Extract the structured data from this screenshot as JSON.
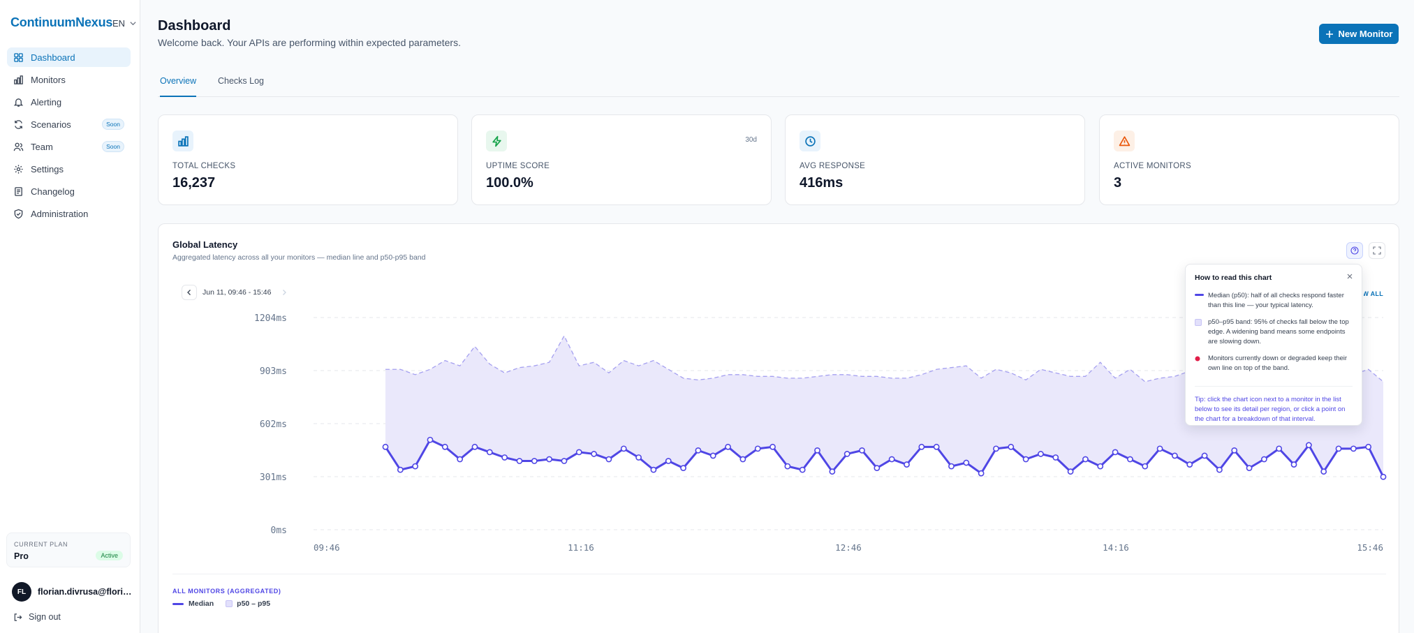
{
  "app": {
    "brand": "ContinuumNexus",
    "language": "EN"
  },
  "sidebar": {
    "items": [
      {
        "label": "Dashboard",
        "icon": "grid-icon",
        "active": true
      },
      {
        "label": "Monitors",
        "icon": "bar-chart-icon"
      },
      {
        "label": "Alerting",
        "icon": "bell-icon"
      },
      {
        "label": "Scenarios",
        "icon": "refresh-icon",
        "badge": "Soon"
      },
      {
        "label": "Team",
        "icon": "users-icon",
        "badge": "Soon"
      },
      {
        "label": "Settings",
        "icon": "gear-icon"
      },
      {
        "label": "Changelog",
        "icon": "document-icon"
      },
      {
        "label": "Administration",
        "icon": "shield-icon"
      }
    ],
    "plan": {
      "label": "CURRENT PLAN",
      "name": "Pro",
      "status": "Active"
    },
    "user": {
      "initials": "FL",
      "email": "florian.divrusa@florian.divrusa.com"
    },
    "signout": "Sign out"
  },
  "header": {
    "title": "Dashboard",
    "subtitle": "Welcome back. Your APIs are performing within expected parameters.",
    "new_monitor": "New Monitor"
  },
  "tabs": [
    {
      "label": "Overview",
      "active": true
    },
    {
      "label": "Checks Log"
    }
  ],
  "stats": [
    {
      "label": "TOTAL CHECKS",
      "value": "16,237",
      "icon": "bar-chart-icon",
      "color": "#0b73b8",
      "bg": "#e8f3fc"
    },
    {
      "label": "UPTIME SCORE",
      "value": "100.0%",
      "icon": "lightning-icon",
      "color": "#16a34a",
      "bg": "#e8f7ee",
      "tag": "30d"
    },
    {
      "label": "AVG RESPONSE",
      "value": "416ms",
      "icon": "clock-icon",
      "color": "#0b73b8",
      "bg": "#e8f3fc"
    },
    {
      "label": "ACTIVE MONITORS",
      "value": "3",
      "icon": "warning-icon",
      "color": "#ea580c",
      "bg": "#fdf0e6"
    }
  ],
  "chart": {
    "title": "Global Latency",
    "subtitle": "Aggregated latency across all your monitors — median line and p50-p95 band",
    "range": "Jun 11, 09:46 - 15:46",
    "show_all": "SHOW ALL",
    "legend_heading": "ALL MONITORS (AGGREGATED)",
    "legend_median": "Median",
    "legend_band": "p50 – p95",
    "colors": {
      "median": "#4f46e5",
      "band_fill": "#e9e7fb",
      "band_line": "#a5a0f0"
    }
  },
  "chart_data": {
    "type": "area",
    "y_ticks": [
      "1204ms",
      "903ms",
      "602ms",
      "301ms",
      "0ms"
    ],
    "ylim": [
      0,
      1204
    ],
    "x_ticks": [
      "09:46",
      "11:16",
      "12:46",
      "14:16",
      "15:46"
    ],
    "x_range": [
      "09:46",
      "15:46"
    ],
    "series": [
      {
        "name": "Median",
        "values": [
          470,
          340,
          360,
          510,
          470,
          400,
          470,
          440,
          410,
          390,
          390,
          400,
          390,
          440,
          430,
          400,
          460,
          410,
          340,
          390,
          350,
          450,
          420,
          470,
          400,
          460,
          470,
          360,
          340,
          450,
          330,
          430,
          450,
          350,
          400,
          370,
          470,
          470,
          360,
          380,
          320,
          460,
          470,
          400,
          430,
          410,
          330,
          400,
          360,
          440,
          400,
          360,
          460,
          420,
          370,
          420,
          340,
          450,
          350,
          400,
          460,
          370,
          480,
          330,
          460,
          460,
          470,
          300
        ]
      },
      {
        "name": "p50 – p95",
        "values": [
          910,
          910,
          880,
          910,
          960,
          930,
          1040,
          940,
          890,
          920,
          930,
          950,
          1100,
          930,
          950,
          890,
          960,
          930,
          960,
          910,
          860,
          850,
          860,
          880,
          880,
          870,
          870,
          860,
          860,
          870,
          880,
          880,
          870,
          870,
          860,
          860,
          880,
          910,
          920,
          930,
          860,
          910,
          890,
          850,
          910,
          890,
          870,
          870,
          950,
          860,
          910,
          840,
          860,
          870,
          900,
          850,
          920,
          900,
          880,
          870,
          860,
          920,
          870,
          890,
          870,
          880,
          910,
          840
        ]
      }
    ]
  },
  "help": {
    "title": "How to read this chart",
    "median": "Median (p50): half of all checks respond faster than this line — your typical latency.",
    "band": "p50–p95 band: 95% of checks fall below the top edge. A widening band means some endpoints are slowing down.",
    "down": "Monitors currently down or degraded keep their own line on top of the band.",
    "tip": "Tip: click the chart icon next to a monitor in the list below to see its detail per region, or click a point on the chart for a breakdown of that interval."
  }
}
